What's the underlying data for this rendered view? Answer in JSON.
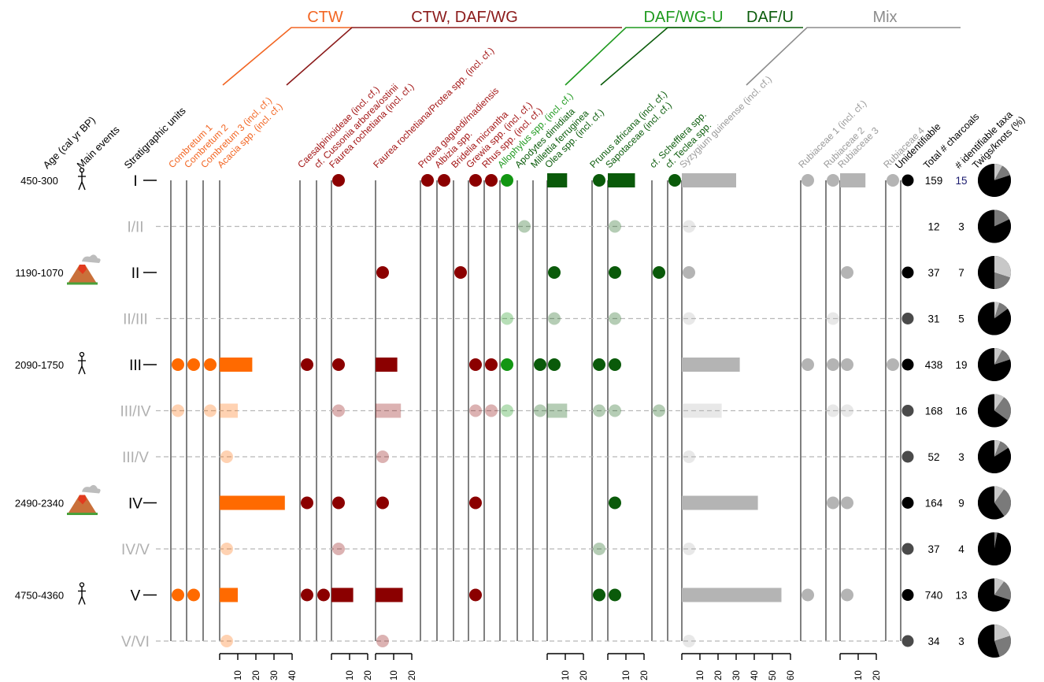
{
  "chart_data": {
    "type": "scatter",
    "header_labels": {
      "age": "Age (cal yr BP)",
      "events": "Main events",
      "units": "Stratigraphic units",
      "unidentifiable": "Unidentifiable",
      "total": "Total # charcoals",
      "identifiable": "# identifiable taxa",
      "twigs": "Twigs/knots (%)"
    },
    "groups": [
      {
        "id": "ctw",
        "label": "CTW",
        "color": "#f26522"
      },
      {
        "id": "ctwdaf",
        "label": "CTW, DAF/WG",
        "color": "#8b1a1a"
      },
      {
        "id": "dafwgu",
        "label": "DAF/WG-U",
        "color": "#1f9a1f"
      },
      {
        "id": "dafu",
        "label": "DAF/U",
        "color": "#0b5c0b"
      },
      {
        "id": "mix",
        "label": "Mix",
        "color": "#8c8c8c"
      }
    ],
    "group_colors": {
      "ctw": "#ff6a00",
      "ctwdaf": "#8b0000",
      "dafwgu": "#129612",
      "dafu": "#0a5a0a",
      "mix": "#b4b4b4",
      "unid": "#000000"
    },
    "taxa": [
      {
        "name": "Combretum 1",
        "group": "ctw"
      },
      {
        "name": "Combretum 2",
        "group": "ctw"
      },
      {
        "name": "Combretum 3 (incl. cf.)",
        "group": "ctw"
      },
      {
        "name": "Acacia spp. (incl. cf.)",
        "group": "ctw"
      },
      {
        "name": "Caesalpinioideae (incl. cf.)",
        "group": "ctwdaf"
      },
      {
        "name": "cf. Cussonia arborea/ostinii",
        "group": "ctwdaf"
      },
      {
        "name": "Faurea rochetiana (incl. cf.)",
        "group": "ctwdaf"
      },
      {
        "name": "Faurea rochetiana/Protea spp. (incl. cf.)",
        "group": "ctwdaf"
      },
      {
        "name": "Protea gaguedi/madiensis",
        "group": "ctwdaf"
      },
      {
        "name": "Albizia spp.",
        "group": "ctwdaf"
      },
      {
        "name": "Bridelia micrantha",
        "group": "ctwdaf"
      },
      {
        "name": "Grewia spp. (incl. cf.)",
        "group": "ctwdaf"
      },
      {
        "name": "Rhus spp. (incl. cf.)",
        "group": "ctwdaf"
      },
      {
        "name": "Allophylus spp. (incl. cf.)",
        "group": "dafwgu"
      },
      {
        "name": "Apodytes dimidiata",
        "group": "dafu"
      },
      {
        "name": "Millettia ferruginea",
        "group": "dafu"
      },
      {
        "name": "Olea spp. (incl. cf.)",
        "group": "dafu"
      },
      {
        "name": "Prunus africana (incl. cf.)",
        "group": "dafu"
      },
      {
        "name": "Sapotaceae (incl. cf.)",
        "group": "dafu"
      },
      {
        "name": "cf. Schefflera spp.",
        "group": "dafu"
      },
      {
        "name": "cf. Teclea spp.",
        "group": "dafu"
      },
      {
        "name": "Syzygium guineense (incl. cf.)",
        "group": "mix"
      },
      {
        "name": "Rubiaceae 1 (incl. cf.)",
        "group": "mix"
      },
      {
        "name": "Rubiaceae 2",
        "group": "mix"
      },
      {
        "name": "Rubiaceae 3",
        "group": "mix"
      },
      {
        "name": "Rubiaceae 4",
        "group": "mix"
      },
      {
        "name": "Unidentifiable",
        "group": "unid"
      }
    ],
    "scales": [
      {
        "taxon": "Acacia spp. (incl. cf.)",
        "ticks": [
          "10",
          "20",
          "30",
          "40"
        ],
        "max": 40
      },
      {
        "taxon": "Faurea rochetiana (incl. cf.)",
        "ticks": [
          "10",
          "20"
        ],
        "max": 20
      },
      {
        "taxon": "Faurea rochetiana/Protea spp. (incl. cf.)",
        "ticks": [
          "10",
          "20"
        ],
        "max": 20
      },
      {
        "taxon": "Olea spp. (incl. cf.)",
        "ticks": [
          "10",
          "20"
        ],
        "max": 20
      },
      {
        "taxon": "Sapotaceae (incl. cf.)",
        "ticks": [
          "10",
          "20"
        ],
        "max": 20
      },
      {
        "taxon": "Syzygium guineense (incl. cf.)",
        "ticks": [
          "10",
          "20",
          "30",
          "40",
          "50",
          "60"
        ],
        "max": 60
      },
      {
        "taxon": "Rubiaceae 3",
        "ticks": [
          "10",
          "20"
        ],
        "max": 20
      }
    ],
    "units": [
      {
        "label": "I",
        "age": "450-300",
        "event": "human",
        "main": true,
        "total": "159",
        "taxa": "15",
        "unid": true,
        "pie": [
          0.08,
          0.12,
          0.8
        ],
        "values": {
          "Faurea rochetiana (incl. cf.)": 1,
          "Protea gaguedi/madiensis": 1,
          "Albizia spp.": 1,
          "Grewia spp. (incl. cf.)": 1,
          "Rhus spp. (incl. cf.)": 1,
          "Allophylus spp. (incl. cf.)": 1,
          "Olea spp. (incl. cf.)": 11,
          "Prunus africana (incl. cf.)": 1,
          "Sapotaceae (incl. cf.)": 15,
          "cf. Teclea spp.": 1,
          "Syzygium guineense (incl. cf.)": 30,
          "Rubiaceae 1 (incl. cf.)": 1,
          "Rubiaceae 2": 1,
          "Rubiaceae 3": 14,
          "Rubiaceae 4": 1
        }
      },
      {
        "label": "I/II",
        "age": "",
        "event": "",
        "main": false,
        "total": "12",
        "taxa": "3",
        "unid": false,
        "pie": [
          0.0,
          0.18,
          0.82
        ],
        "values": {
          "Apodytes dimidiata": 1,
          "Sapotaceae (incl. cf.)": 1,
          "Syzygium guineense (incl. cf.)": 1
        }
      },
      {
        "label": "II",
        "age": "1190-1070",
        "event": "volcano",
        "main": true,
        "total": "37",
        "taxa": "7",
        "unid": true,
        "pie": [
          0.3,
          0.2,
          0.5
        ],
        "values": {
          "Faurea rochetiana/Protea spp. (incl. cf.)": 1,
          "Bridelia micrantha": 1,
          "Olea spp. (incl. cf.)": 1,
          "Sapotaceae (incl. cf.)": 1,
          "cf. Schefflera spp.": 1,
          "Syzygium guineense (incl. cf.)": 1,
          "Rubiaceae 3": 1
        }
      },
      {
        "label": "II/III",
        "age": "",
        "event": "",
        "main": false,
        "total": "31",
        "taxa": "5",
        "unid": true,
        "pie": [
          0.05,
          0.1,
          0.85
        ],
        "values": {
          "Allophylus spp. (incl. cf.)": 1,
          "Olea spp. (incl. cf.)": 1,
          "Sapotaceae (incl. cf.)": 1,
          "Syzygium guineense (incl. cf.)": 1,
          "Rubiaceae 2": 1
        }
      },
      {
        "label": "III",
        "age": "2090-1750",
        "event": "human",
        "main": true,
        "total": "438",
        "taxa": "19",
        "unid": true,
        "pie": [
          0.08,
          0.12,
          0.8
        ],
        "values": {
          "Combretum 1": 1,
          "Combretum 2": 1,
          "Combretum 3 (incl. cf.)": 1,
          "Acacia spp. (incl. cf.)": 18,
          "Caesalpinioideae (incl. cf.)": 1,
          "Faurea rochetiana (incl. cf.)": 1,
          "Faurea rochetiana/Protea spp. (incl. cf.)": 12,
          "Grewia spp. (incl. cf.)": 1,
          "Rhus spp. (incl. cf.)": 1,
          "Allophylus spp. (incl. cf.)": 1,
          "Millettia ferruginea": 1,
          "Olea spp. (incl. cf.)": 1,
          "Prunus africana (incl. cf.)": 1,
          "Sapotaceae (incl. cf.)": 1,
          "Syzygium guineense (incl. cf.)": 32,
          "Rubiaceae 1 (incl. cf.)": 1,
          "Rubiaceae 2": 1,
          "Rubiaceae 3": 1,
          "Rubiaceae 4": 1
        }
      },
      {
        "label": "III/IV",
        "age": "",
        "event": "",
        "main": false,
        "total": "168",
        "taxa": "16",
        "unid": true,
        "pie": [
          0.1,
          0.25,
          0.65
        ],
        "values": {
          "Combretum 1": 1,
          "Combretum 3 (incl. cf.)": 1,
          "Acacia spp. (incl. cf.)": 10,
          "Faurea rochetiana (incl. cf.)": 1,
          "Faurea rochetiana/Protea spp. (incl. cf.)": 14,
          "Grewia spp. (incl. cf.)": 1,
          "Rhus spp. (incl. cf.)": 1,
          "Allophylus spp. (incl. cf.)": 1,
          "Millettia ferruginea": 1,
          "Olea spp. (incl. cf.)": 11,
          "Prunus africana (incl. cf.)": 1,
          "Sapotaceae (incl. cf.)": 1,
          "cf. Schefflera spp.": 1,
          "Syzygium guineense (incl. cf.)": 22,
          "Rubiaceae 2": 1,
          "Rubiaceae 3": 1
        }
      },
      {
        "label": "III/V",
        "age": "",
        "event": "",
        "main": false,
        "total": "52",
        "taxa": "3",
        "unid": true,
        "pie": [
          0.06,
          0.1,
          0.84
        ],
        "values": {
          "Acacia spp. (incl. cf.)": 1,
          "Faurea rochetiana/Protea spp. (incl. cf.)": 1,
          "Syzygium guineense (incl. cf.)": 1
        }
      },
      {
        "label": "IV",
        "age": "2490-2340",
        "event": "volcano",
        "main": true,
        "total": "164",
        "taxa": "9",
        "unid": true,
        "pie": [
          0.1,
          0.3,
          0.6
        ],
        "values": {
          "Acacia spp. (incl. cf.)": 36,
          "Caesalpinioideae (incl. cf.)": 1,
          "Faurea rochetiana (incl. cf.)": 1,
          "Faurea rochetiana/Protea spp. (incl. cf.)": 1,
          "Grewia spp. (incl. cf.)": 1,
          "Sapotaceae (incl. cf.)": 1,
          "Syzygium guineense (incl. cf.)": 42,
          "Rubiaceae 2": 1,
          "Rubiaceae 3": 1
        }
      },
      {
        "label": "IV/V",
        "age": "",
        "event": "",
        "main": false,
        "total": "37",
        "taxa": "4",
        "unid": true,
        "pie": [
          0.0,
          0.03,
          0.97
        ],
        "values": {
          "Acacia spp. (incl. cf.)": 1,
          "Faurea rochetiana (incl. cf.)": 1,
          "Prunus africana (incl. cf.)": 1,
          "Syzygium guineense (incl. cf.)": 1
        }
      },
      {
        "label": "V",
        "age": "4750-4360",
        "event": "human",
        "main": true,
        "total": "740",
        "taxa": "13",
        "unid": true,
        "pie": [
          0.1,
          0.2,
          0.7
        ],
        "values": {
          "Combretum 1": 1,
          "Combretum 2": 1,
          "Acacia spp. (incl. cf.)": 10,
          "Caesalpinioideae (incl. cf.)": 1,
          "cf. Cussonia arborea/ostinii": 1,
          "Faurea rochetiana (incl. cf.)": 12,
          "Faurea rochetiana/Protea spp. (incl. cf.)": 15,
          "Grewia spp. (incl. cf.)": 1,
          "Prunus africana (incl. cf.)": 1,
          "Sapotaceae (incl. cf.)": 1,
          "Syzygium guineense (incl. cf.)": 55,
          "Rubiaceae 1 (incl. cf.)": 1,
          "Rubiaceae 3": 1
        }
      },
      {
        "label": "V/VI",
        "age": "",
        "event": "",
        "main": false,
        "total": "34",
        "taxa": "3",
        "unid": true,
        "pie": [
          0.2,
          0.25,
          0.55
        ],
        "values": {
          "Acacia spp. (incl. cf.)": 1,
          "Faurea rochetiana/Protea spp. (incl. cf.)": 1,
          "Syzygium guineense (incl. cf.)": 1
        }
      }
    ],
    "pie_colors": [
      "#c8c8c8",
      "#7a7a7a",
      "#000000"
    ]
  }
}
